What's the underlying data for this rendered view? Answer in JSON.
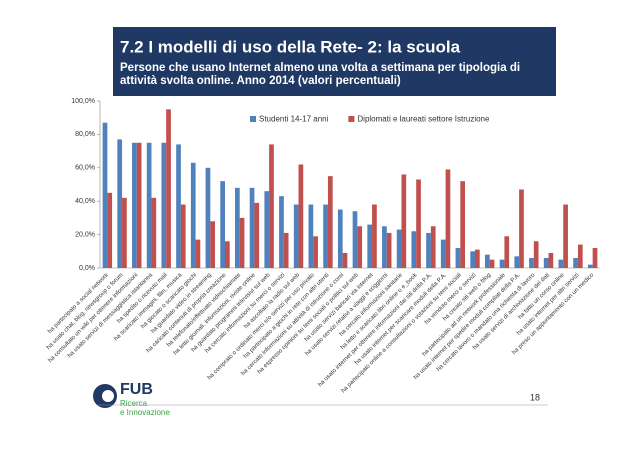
{
  "chart_data": {
    "type": "bar",
    "title": "7.2 I modelli di uso della Rete- 2: la scuola",
    "subtitle": "Persone che usano Internet almeno una volta a settimana per tipologia di attività svolta online. Anno 2014 (valori percentuali)",
    "categories": [
      "ha partecipato a social network",
      "ha usato chat, blog, newsgroup o forum",
      "ha consultato un wiki per ottenere informazioni",
      "ha usato servizi di messaggistica istantanea",
      "ha spedito o ricevuto mail",
      "ha scaricato immagini, film, musica",
      "ha giocato o scaricato giochi",
      "ha guardato video in streaming",
      "ha caricato contenuti di propria creazione",
      "ha telefonato/effettuato videochiamate",
      "ha letto giornali, informazioni, riviste online",
      "ha guardato programmi televisivi sul web",
      "ha cercato informazioni su merci o servizi",
      "ha ascoltato la radio sul web",
      "ha comprato o ordinato merci e/o servizi per uso privato",
      "ha partecipato a giochi in rete con altri utenti",
      "ha cercato informazioni su attività di istruzione o corsi",
      "ha espresso opinioni su temi sociali o politici sul web",
      "ha usato servizi bancari via internet",
      "ha usato servizi relativi a viaggi e soggiorni",
      "ha cercato informazioni sanitarie",
      "ha letto e scaricato libri online o e_book",
      "ha usato internet per ottenere informazioni dai siti della P.A.",
      "ha usato internet per scaricare moduli della P.A.",
      "ha partecipato online a consultazioni o votazioni su temi sociali",
      "ha venduto merci o servizi",
      "ha creato siti web o blog",
      "ha partecipato ad un network professionale",
      "ha usato internet per spedire moduli compilati della P.A.",
      "ha cercato lavoro o mandato una richiesta di lavoro",
      "ha usato servizi di archiviazione dei dati",
      "ha fatto un corso online",
      "ha usato internet per altri servizi",
      "ha preso un appuntamento con un medico"
    ],
    "series": [
      {
        "name": "Studenti 14-17 anni",
        "color": "#4f81bd",
        "values": [
          87,
          77,
          75,
          75,
          75,
          74,
          63,
          60,
          52,
          48,
          48,
          46,
          43,
          38,
          38,
          38,
          35,
          34,
          26,
          25,
          23,
          22,
          21,
          17,
          12,
          10,
          8,
          5,
          7,
          6,
          6,
          5,
          6,
          2
        ]
      },
      {
        "name": "Diplomati e laureati settore Istruzione",
        "color": "#c0504d",
        "values": [
          45,
          42,
          75,
          42,
          95,
          38,
          17,
          28,
          16,
          30,
          39,
          74,
          21,
          62,
          19,
          55,
          9,
          25,
          38,
          21,
          56,
          53,
          25,
          59,
          52,
          11,
          5,
          19,
          47,
          16,
          9,
          38,
          14,
          12
        ]
      }
    ],
    "ylim": [
      0,
      100
    ],
    "yticks": [
      {
        "value": 0,
        "label": "0,0%"
      },
      {
        "value": 20,
        "label": "20,0%"
      },
      {
        "value": 40,
        "label": "40,0%"
      },
      {
        "value": 60,
        "label": "60,0%"
      },
      {
        "value": 80,
        "label": "80,0%"
      },
      {
        "value": 100,
        "label": "100,0%"
      }
    ],
    "legend": "top-right"
  },
  "footer": {
    "logo": "FUB",
    "tagline_1": "Ricerca",
    "tagline_2": "e Innovazione",
    "page": "18"
  }
}
